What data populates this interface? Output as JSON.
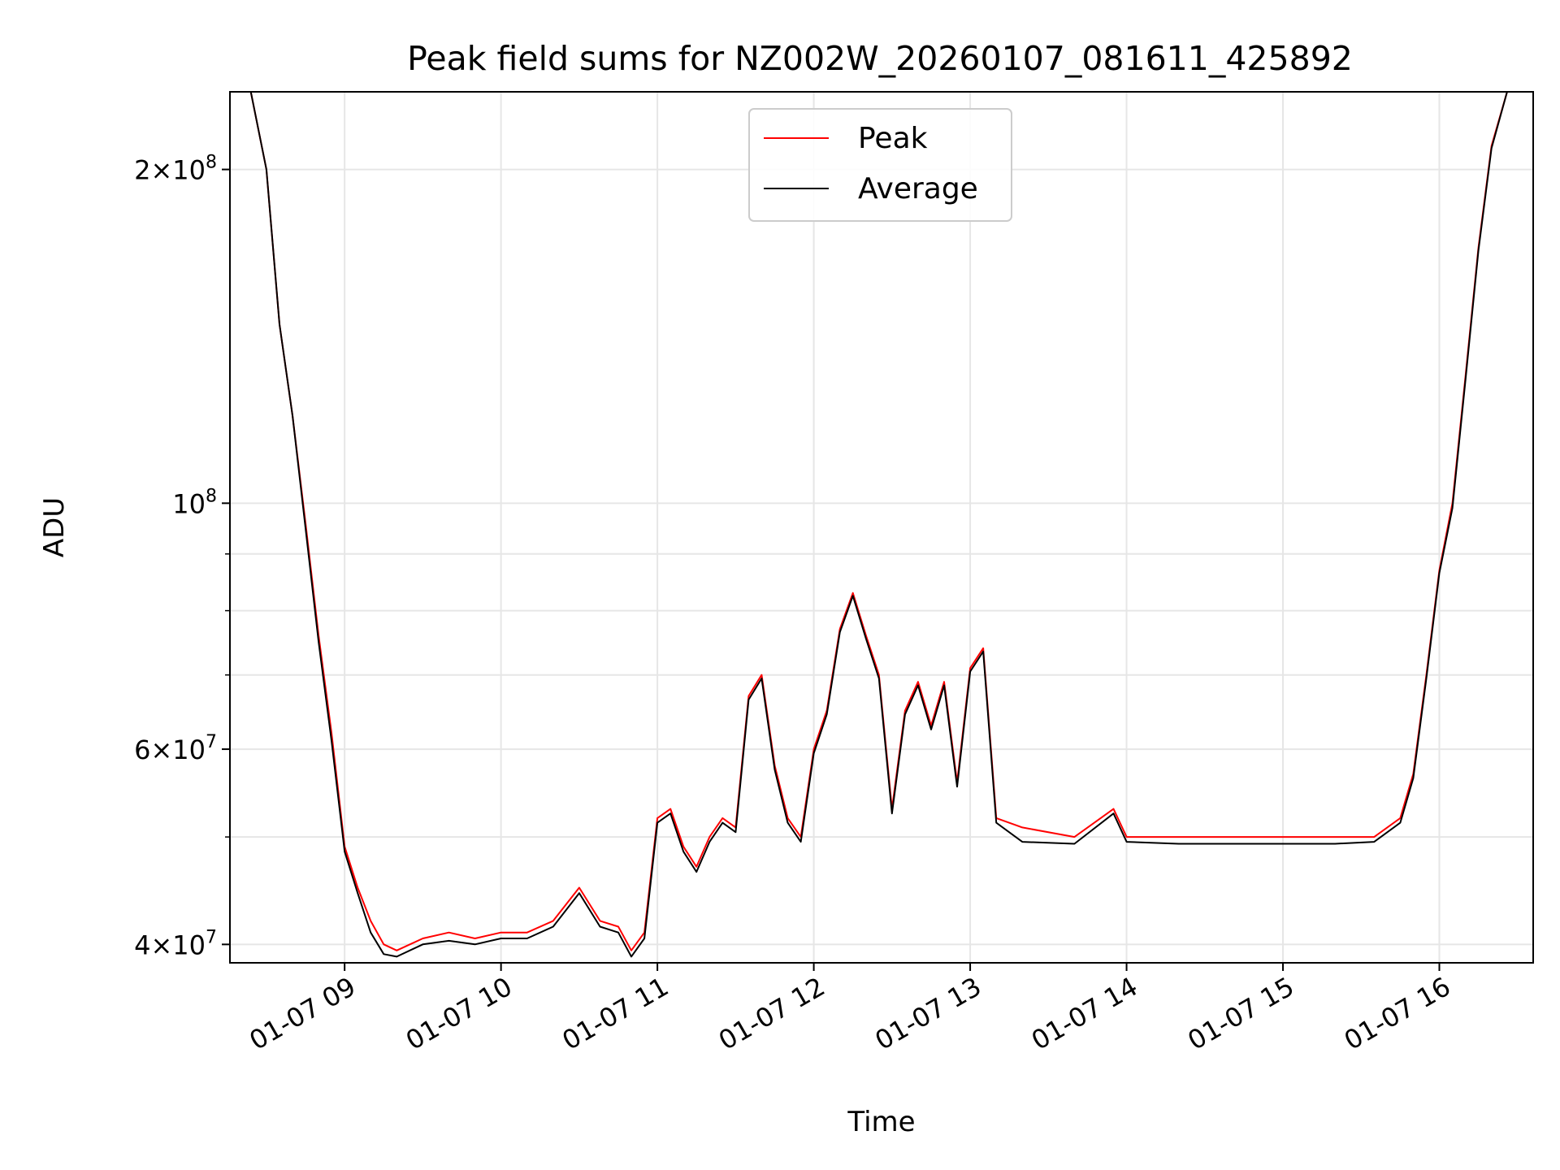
{
  "chart_data": {
    "type": "line",
    "title": "Peak field sums for NZ002W_20260107_081611_425892",
    "xlabel": "Time",
    "ylabel": "ADU",
    "yscale": "log",
    "ylim": [
      38500000,
      235000000
    ],
    "xlim": [
      "2026-01-07 08:16",
      "2026-01-07 16:36"
    ],
    "grid": true,
    "legend_position": "top-center",
    "x_ticks": [
      {
        "time": "2026-01-07 09:00",
        "label": "01-07 09"
      },
      {
        "time": "2026-01-07 10:00",
        "label": "01-07 10"
      },
      {
        "time": "2026-01-07 11:00",
        "label": "01-07 11"
      },
      {
        "time": "2026-01-07 12:00",
        "label": "01-07 12"
      },
      {
        "time": "2026-01-07 13:00",
        "label": "01-07 13"
      },
      {
        "time": "2026-01-07 14:00",
        "label": "01-07 14"
      },
      {
        "time": "2026-01-07 15:00",
        "label": "01-07 15"
      },
      {
        "time": "2026-01-07 16:00",
        "label": "01-07 16"
      }
    ],
    "y_ticks": [
      {
        "value": 40000000,
        "base": "4×10",
        "exp": "7"
      },
      {
        "value": 60000000,
        "base": "6×10",
        "exp": "7"
      },
      {
        "value": 100000000,
        "base": "10",
        "exp": "8"
      },
      {
        "value": 200000000,
        "base": "2×10",
        "exp": "8"
      }
    ],
    "y_minor_ticks": [
      50000000,
      70000000,
      80000000,
      90000000
    ],
    "series": [
      {
        "name": "Peak",
        "color": "#ff0000",
        "x": [
          "2026-01-07 08:16",
          "2026-01-07 08:24",
          "2026-01-07 08:30",
          "2026-01-07 08:35",
          "2026-01-07 08:40",
          "2026-01-07 08:45",
          "2026-01-07 08:50",
          "2026-01-07 08:55",
          "2026-01-07 09:00",
          "2026-01-07 09:05",
          "2026-01-07 09:10",
          "2026-01-07 09:15",
          "2026-01-07 09:20",
          "2026-01-07 09:30",
          "2026-01-07 09:40",
          "2026-01-07 09:50",
          "2026-01-07 10:00",
          "2026-01-07 10:10",
          "2026-01-07 10:20",
          "2026-01-07 10:30",
          "2026-01-07 10:38",
          "2026-01-07 10:45",
          "2026-01-07 10:50",
          "2026-01-07 10:55",
          "2026-01-07 11:00",
          "2026-01-07 11:05",
          "2026-01-07 11:10",
          "2026-01-07 11:15",
          "2026-01-07 11:20",
          "2026-01-07 11:25",
          "2026-01-07 11:30",
          "2026-01-07 11:35",
          "2026-01-07 11:40",
          "2026-01-07 11:45",
          "2026-01-07 11:50",
          "2026-01-07 11:55",
          "2026-01-07 12:00",
          "2026-01-07 12:05",
          "2026-01-07 12:10",
          "2026-01-07 12:15",
          "2026-01-07 12:20",
          "2026-01-07 12:25",
          "2026-01-07 12:30",
          "2026-01-07 12:35",
          "2026-01-07 12:40",
          "2026-01-07 12:45",
          "2026-01-07 12:50",
          "2026-01-07 12:55",
          "2026-01-07 13:00",
          "2026-01-07 13:05",
          "2026-01-07 13:10",
          "2026-01-07 13:20",
          "2026-01-07 13:40",
          "2026-01-07 13:55",
          "2026-01-07 14:00",
          "2026-01-07 14:20",
          "2026-01-07 14:40",
          "2026-01-07 15:00",
          "2026-01-07 15:20",
          "2026-01-07 15:35",
          "2026-01-07 15:45",
          "2026-01-07 15:50",
          "2026-01-07 15:55",
          "2026-01-07 16:00",
          "2026-01-07 16:05",
          "2026-01-07 16:10",
          "2026-01-07 16:15",
          "2026-01-07 16:20",
          "2026-01-07 16:26"
        ],
        "y": [
          235000000,
          235000000,
          200000000,
          145000000,
          120000000,
          96000000,
          76000000,
          62000000,
          49000000,
          45000000,
          42000000,
          40000000,
          39500000,
          40500000,
          41000000,
          40500000,
          41000000,
          41000000,
          42000000,
          45000000,
          42000000,
          41500000,
          39500000,
          41000000,
          52000000,
          53000000,
          49000000,
          47000000,
          50000000,
          52000000,
          51000000,
          67000000,
          70000000,
          58000000,
          52000000,
          50000000,
          60000000,
          65000000,
          77000000,
          83000000,
          76000000,
          70000000,
          53000000,
          65000000,
          69000000,
          63000000,
          69000000,
          56000000,
          71000000,
          74000000,
          52000000,
          51000000,
          50000000,
          53000000,
          50000000,
          50000000,
          50000000,
          50000000,
          50000000,
          50000000,
          52000000,
          57000000,
          70000000,
          87000000,
          100000000,
          130000000,
          170000000,
          210000000,
          235000000
        ]
      },
      {
        "name": "Average",
        "color": "#000000",
        "x": [
          "2026-01-07 08:16",
          "2026-01-07 08:24",
          "2026-01-07 08:30",
          "2026-01-07 08:35",
          "2026-01-07 08:40",
          "2026-01-07 08:45",
          "2026-01-07 08:50",
          "2026-01-07 08:55",
          "2026-01-07 09:00",
          "2026-01-07 09:05",
          "2026-01-07 09:10",
          "2026-01-07 09:15",
          "2026-01-07 09:20",
          "2026-01-07 09:30",
          "2026-01-07 09:40",
          "2026-01-07 09:50",
          "2026-01-07 10:00",
          "2026-01-07 10:10",
          "2026-01-07 10:20",
          "2026-01-07 10:30",
          "2026-01-07 10:38",
          "2026-01-07 10:45",
          "2026-01-07 10:50",
          "2026-01-07 10:55",
          "2026-01-07 11:00",
          "2026-01-07 11:05",
          "2026-01-07 11:10",
          "2026-01-07 11:15",
          "2026-01-07 11:20",
          "2026-01-07 11:25",
          "2026-01-07 11:30",
          "2026-01-07 11:35",
          "2026-01-07 11:40",
          "2026-01-07 11:45",
          "2026-01-07 11:50",
          "2026-01-07 11:55",
          "2026-01-07 12:00",
          "2026-01-07 12:05",
          "2026-01-07 12:10",
          "2026-01-07 12:15",
          "2026-01-07 12:20",
          "2026-01-07 12:25",
          "2026-01-07 12:30",
          "2026-01-07 12:35",
          "2026-01-07 12:40",
          "2026-01-07 12:45",
          "2026-01-07 12:50",
          "2026-01-07 12:55",
          "2026-01-07 13:00",
          "2026-01-07 13:05",
          "2026-01-07 13:10",
          "2026-01-07 13:20",
          "2026-01-07 13:40",
          "2026-01-07 13:55",
          "2026-01-07 14:00",
          "2026-01-07 14:20",
          "2026-01-07 14:40",
          "2026-01-07 15:00",
          "2026-01-07 15:20",
          "2026-01-07 15:35",
          "2026-01-07 15:45",
          "2026-01-07 15:50",
          "2026-01-07 15:55",
          "2026-01-07 16:00",
          "2026-01-07 16:05",
          "2026-01-07 16:10",
          "2026-01-07 16:15",
          "2026-01-07 16:20",
          "2026-01-07 16:26"
        ],
        "y": [
          235000000,
          235000000,
          200000000,
          145000000,
          120000000,
          95000000,
          75000000,
          61000000,
          48500000,
          44500000,
          41000000,
          39200000,
          39000000,
          40000000,
          40300000,
          40000000,
          40500000,
          40500000,
          41500000,
          44500000,
          41500000,
          41000000,
          39000000,
          40500000,
          51500000,
          52500000,
          48500000,
          46500000,
          49500000,
          51500000,
          50500000,
          66500000,
          69500000,
          57500000,
          51500000,
          49500000,
          59500000,
          64500000,
          76500000,
          82500000,
          75500000,
          69500000,
          52500000,
          64500000,
          68500000,
          62500000,
          68500000,
          55500000,
          70500000,
          73500000,
          51500000,
          49500000,
          49300000,
          52500000,
          49500000,
          49300000,
          49300000,
          49300000,
          49300000,
          49500000,
          51500000,
          56500000,
          69500000,
          86500000,
          99000000,
          129000000,
          169000000,
          209000000,
          235000000
        ]
      }
    ],
    "legend": [
      {
        "name": "Peak",
        "color": "#ff0000"
      },
      {
        "name": "Average",
        "color": "#000000"
      }
    ]
  }
}
